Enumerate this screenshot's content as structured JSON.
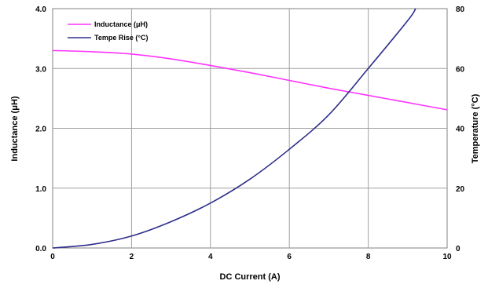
{
  "chart_data": {
    "type": "line",
    "xlabel": "DC Current (A)",
    "ylabel_left": "Inductance (μH)",
    "ylabel_right": "Temperature (°C)",
    "xlim": [
      0,
      10
    ],
    "ylim_left": [
      0,
      4
    ],
    "ylim_right": [
      0,
      80
    ],
    "x_ticks": [
      "0",
      "2",
      "4",
      "6",
      "8",
      "10"
    ],
    "y_left_ticks": [
      "0.0",
      "1.0",
      "2.0",
      "3.0",
      "4.0"
    ],
    "y_right_ticks": [
      "0",
      "20",
      "40",
      "60",
      "80"
    ],
    "grid": true,
    "legend_position": "top-left",
    "series": [
      {
        "name": "Inductance (μH)",
        "axis": "left",
        "color": "#ff33ff",
        "x": [
          0,
          1,
          2,
          3,
          4,
          5,
          6,
          7,
          8,
          9,
          10
        ],
        "y": [
          3.3,
          3.28,
          3.24,
          3.16,
          3.05,
          2.93,
          2.8,
          2.67,
          2.55,
          2.43,
          2.31
        ]
      },
      {
        "name": "Tempe Rise (°C)",
        "axis": "right",
        "color": "#2e2e8a",
        "x": [
          0,
          1,
          2,
          3,
          4,
          5,
          6,
          7,
          8,
          9,
          9.2
        ],
        "y": [
          0,
          1.2,
          4,
          8.8,
          15,
          23,
          33,
          44.5,
          60,
          76,
          80
        ]
      }
    ]
  }
}
